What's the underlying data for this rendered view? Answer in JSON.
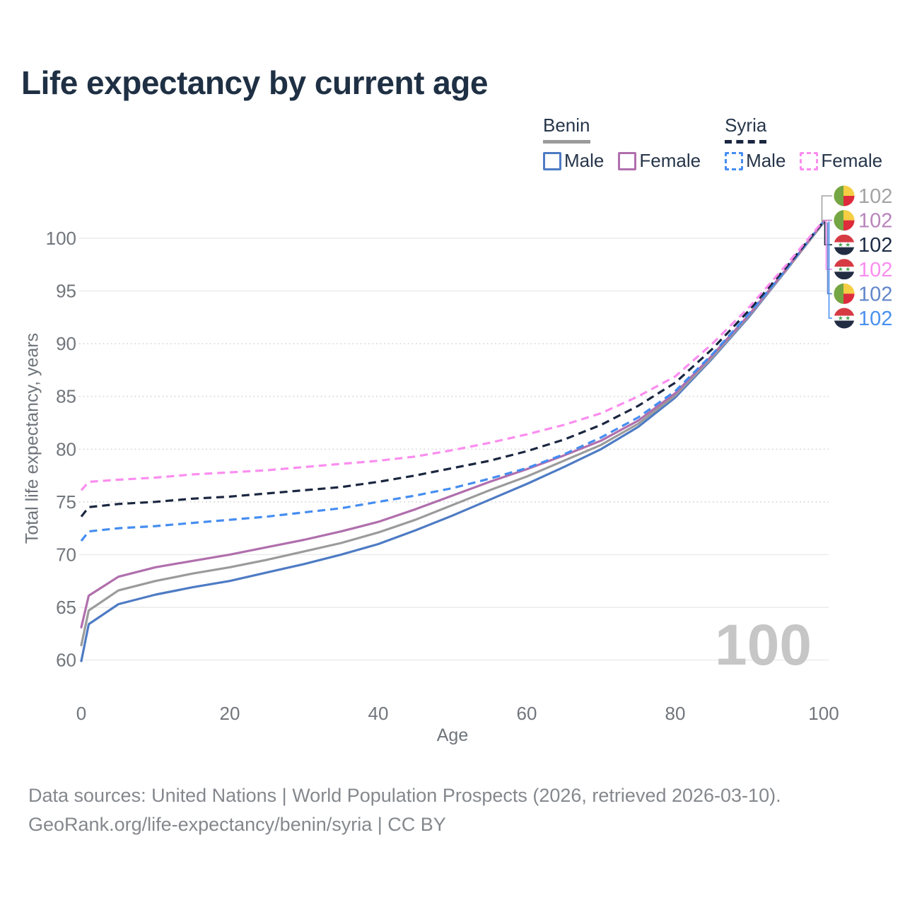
{
  "title": "Life expectancy by current age",
  "watermark": "100",
  "footer": {
    "line1": "Data sources: United Nations | World Population Prospects (2026, retrieved 2026-03-10).",
    "line2": "GeoRank.org/life-expectancy/benin/syria | CC BY"
  },
  "legend": {
    "groups": [
      {
        "name": "Benin",
        "underline_style": "solid",
        "underline_color": "#9b9b9b",
        "items": [
          {
            "label": "Male",
            "color": "#4e7bc4",
            "style": "solid"
          },
          {
            "label": "Female",
            "color": "#b06fad",
            "style": "solid"
          }
        ]
      },
      {
        "name": "Syria",
        "underline_style": "dashed",
        "underline_color": "#1b2740",
        "items": [
          {
            "label": "Male",
            "color": "#458df1",
            "style": "dashed"
          },
          {
            "label": "Female",
            "color": "#fb8def",
            "style": "dashed"
          }
        ]
      }
    ]
  },
  "end_labels": [
    {
      "flag": "benin",
      "series": "Benin both sexes",
      "value": "102",
      "color": "#a3a3a3"
    },
    {
      "flag": "benin",
      "series": "Benin Female",
      "value": "102",
      "color": "#b884bb"
    },
    {
      "flag": "syria",
      "series": "Syria both sexes",
      "value": "102",
      "color": "#1c2b45"
    },
    {
      "flag": "syria",
      "series": "Syria Female",
      "value": "102",
      "color": "#fb8def"
    },
    {
      "flag": "benin",
      "series": "Benin Male",
      "value": "102",
      "color": "#6186c9"
    },
    {
      "flag": "syria",
      "series": "Syria Male",
      "value": "102",
      "color": "#4a90f0"
    }
  ],
  "chart_data": {
    "type": "line",
    "title": "Life expectancy by current age",
    "xlabel": "Age",
    "ylabel": "Total life expectancy, years",
    "xlim": [
      0,
      100
    ],
    "ylim": [
      59,
      102
    ],
    "x_ticks": [
      0,
      20,
      40,
      60,
      80,
      100
    ],
    "y_ticks": [
      {
        "v": 60,
        "grid": "solid"
      },
      {
        "v": 65,
        "grid": "solid"
      },
      {
        "v": 70,
        "grid": "solid"
      },
      {
        "v": 75,
        "grid": "dotted"
      },
      {
        "v": 80,
        "grid": "dotted"
      },
      {
        "v": 85,
        "grid": "dotted"
      },
      {
        "v": 90,
        "grid": "dotted"
      },
      {
        "v": 95,
        "grid": "solid"
      },
      {
        "v": 100,
        "grid": "solid"
      }
    ],
    "legend_position": "top-right",
    "grid": "horizontal-only",
    "x": [
      0,
      1,
      5,
      10,
      15,
      20,
      25,
      30,
      35,
      40,
      45,
      50,
      55,
      60,
      65,
      70,
      75,
      80,
      85,
      90,
      95,
      100
    ],
    "series": [
      {
        "name": "Benin Male",
        "country": "Benin",
        "sex": "male",
        "color": "#4e7bc4",
        "dash": "solid",
        "values": [
          59.9,
          63.4,
          65.3,
          66.2,
          66.9,
          67.5,
          68.3,
          69.1,
          70.0,
          71.0,
          72.3,
          73.7,
          75.2,
          76.7,
          78.3,
          80.0,
          82.1,
          84.9,
          88.6,
          92.6,
          97.0,
          101.5
        ]
      },
      {
        "name": "Benin both sexes",
        "country": "Benin",
        "sex": "total",
        "color": "#9b9b9b",
        "dash": "solid",
        "values": [
          61.4,
          64.7,
          66.6,
          67.5,
          68.2,
          68.8,
          69.5,
          70.3,
          71.1,
          72.1,
          73.3,
          74.7,
          76.1,
          77.4,
          78.9,
          80.4,
          82.4,
          85.1,
          88.7,
          92.7,
          97.0,
          101.5
        ]
      },
      {
        "name": "Benin Female",
        "country": "Benin",
        "sex": "female",
        "color": "#b06fad",
        "dash": "solid",
        "values": [
          63.1,
          66.1,
          67.9,
          68.8,
          69.4,
          70.0,
          70.7,
          71.4,
          72.2,
          73.1,
          74.3,
          75.6,
          76.9,
          78.1,
          79.4,
          80.8,
          82.7,
          85.3,
          88.9,
          92.8,
          97.1,
          101.6
        ]
      },
      {
        "name": "Syria Male",
        "country": "Syria",
        "sex": "male",
        "color": "#458df1",
        "dash": "dashed",
        "values": [
          71.3,
          72.2,
          72.5,
          72.7,
          73.0,
          73.3,
          73.6,
          74.0,
          74.4,
          75.0,
          75.6,
          76.3,
          77.2,
          78.2,
          79.5,
          81.1,
          83.0,
          85.5,
          89.0,
          92.9,
          97.1,
          101.6
        ]
      },
      {
        "name": "Syria both sexes",
        "country": "Syria",
        "sex": "total",
        "color": "#1b2740",
        "dash": "dashed",
        "values": [
          73.6,
          74.5,
          74.8,
          75.0,
          75.3,
          75.5,
          75.8,
          76.1,
          76.4,
          76.9,
          77.5,
          78.2,
          78.9,
          79.8,
          80.9,
          82.3,
          84.1,
          86.3,
          89.5,
          93.2,
          97.3,
          101.6
        ]
      },
      {
        "name": "Syria Female",
        "country": "Syria",
        "sex": "female",
        "color": "#fb8def",
        "dash": "dashed",
        "values": [
          76.1,
          76.9,
          77.1,
          77.3,
          77.6,
          77.8,
          78.0,
          78.3,
          78.6,
          78.9,
          79.3,
          79.9,
          80.6,
          81.4,
          82.3,
          83.4,
          85.0,
          86.9,
          90.0,
          93.5,
          97.5,
          101.7
        ]
      }
    ]
  }
}
